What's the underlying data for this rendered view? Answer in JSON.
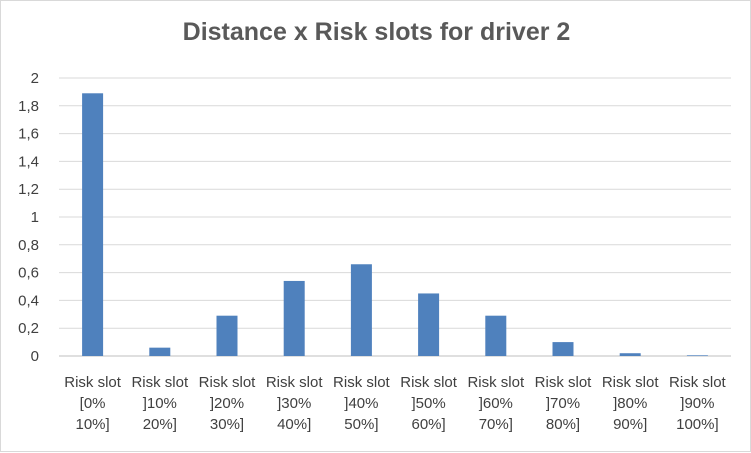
{
  "chart_data": {
    "type": "bar",
    "title": "Distance x Risk slots for driver 2",
    "xlabel": "",
    "ylabel": "",
    "ylim": [
      0,
      2
    ],
    "yticks": [
      "0",
      "0,2",
      "0,4",
      "0,6",
      "0,8",
      "1",
      "1,2",
      "1,4",
      "1,6",
      "1,8",
      "2"
    ],
    "grid": true,
    "legend": "none",
    "bar_color": "#4f81bd",
    "categories": [
      [
        "Risk slot",
        "[0%",
        "10%]"
      ],
      [
        "Risk slot",
        "]10%",
        "20%]"
      ],
      [
        "Risk slot",
        "]20%",
        "30%]"
      ],
      [
        "Risk slot",
        "]30%",
        "40%]"
      ],
      [
        "Risk slot",
        "]40%",
        "50%]"
      ],
      [
        "Risk slot",
        "]50%",
        "60%]"
      ],
      [
        "Risk slot",
        "]60%",
        "70%]"
      ],
      [
        "Risk slot",
        "]70%",
        "80%]"
      ],
      [
        "Risk slot",
        "]80%",
        "90%]"
      ],
      [
        "Risk slot",
        "]90%",
        "100%]"
      ]
    ],
    "values": [
      1.89,
      0.06,
      0.29,
      0.54,
      0.66,
      0.45,
      0.29,
      0.1,
      0.02,
      0.005
    ]
  }
}
